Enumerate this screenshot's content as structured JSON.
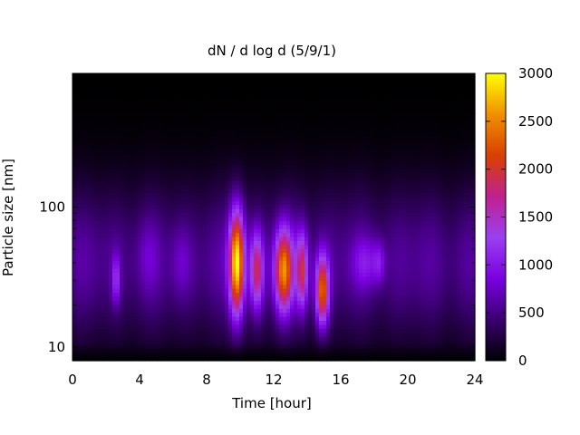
{
  "chart_data": {
    "type": "heatmap",
    "title": "dN / d log d (5/9/1)",
    "xlabel": "Time [hour]",
    "ylabel": "Particle size [nm]",
    "x_ticks": [
      0,
      4,
      8,
      12,
      16,
      20,
      24
    ],
    "xlim": [
      0,
      24
    ],
    "y_scale": "log",
    "y_ticks": [
      10,
      100
    ],
    "ylim": [
      8,
      900
    ],
    "colorbar": {
      "ticks": [
        0,
        500,
        1000,
        1500,
        2000,
        2500,
        3000
      ],
      "range": [
        0,
        3000
      ],
      "palette": [
        "#000000",
        "#3a0070",
        "#7a00e0",
        "#9a40f0",
        "#c02090",
        "#d84000",
        "#f09000",
        "#ffff00"
      ]
    },
    "background_level": 650,
    "events": [
      {
        "t_center": 9.8,
        "t_width": 0.45,
        "d_center_nm": 40,
        "log_width": 0.38,
        "peak": 2500
      },
      {
        "t_center": 11.0,
        "t_width": 0.4,
        "d_center_nm": 35,
        "log_width": 0.28,
        "peak": 1350
      },
      {
        "t_center": 12.6,
        "t_width": 0.55,
        "d_center_nm": 35,
        "log_width": 0.3,
        "peak": 2000
      },
      {
        "t_center": 13.7,
        "t_width": 0.35,
        "d_center_nm": 35,
        "log_width": 0.28,
        "peak": 1400
      },
      {
        "t_center": 14.9,
        "t_width": 0.4,
        "d_center_nm": 25,
        "log_width": 0.25,
        "peak": 1900
      },
      {
        "t_center": 2.6,
        "t_width": 0.25,
        "d_center_nm": 30,
        "log_width": 0.18,
        "peak": 700
      },
      {
        "t_center": 17.5,
        "t_width": 0.8,
        "d_center_nm": 40,
        "log_width": 0.18,
        "peak": 450
      },
      {
        "t_center": 18.3,
        "t_width": 0.35,
        "d_center_nm": 40,
        "log_width": 0.15,
        "peak": 450
      },
      {
        "t_center": 6.5,
        "t_width": 0.6,
        "d_center_nm": 40,
        "log_width": 0.25,
        "peak": 250
      },
      {
        "t_center": 4.5,
        "t_width": 0.6,
        "d_center_nm": 45,
        "log_width": 0.25,
        "peak": 200
      }
    ]
  }
}
